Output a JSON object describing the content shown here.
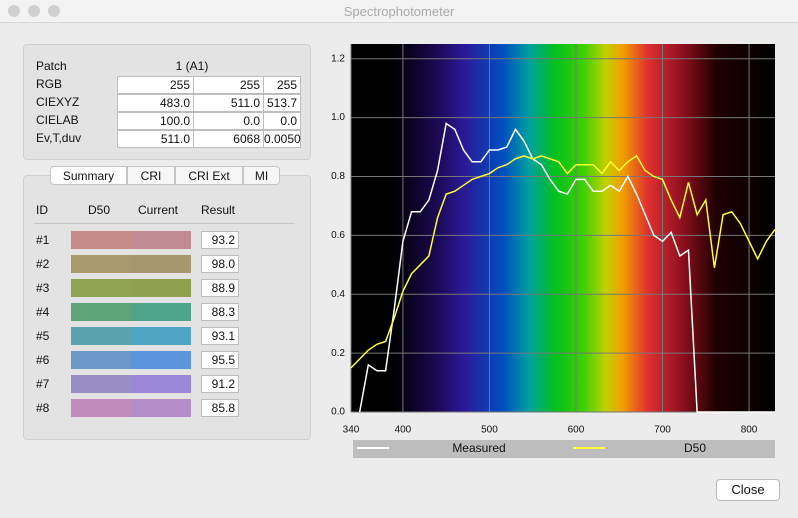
{
  "window": {
    "title": "Spectrophotometer"
  },
  "patch": {
    "label": "Patch",
    "value": "1  (A1)",
    "rows": [
      {
        "label": "RGB",
        "values": [
          "255",
          "255",
          "255"
        ]
      },
      {
        "label": "CIEXYZ",
        "values": [
          "483.0",
          "511.0",
          "513.7"
        ]
      },
      {
        "label": "CIELAB",
        "values": [
          "100.0",
          "0.0",
          "0.0"
        ]
      },
      {
        "label": "Ev,T,duv",
        "values": [
          "511.0",
          "6068",
          "0.0050"
        ]
      }
    ]
  },
  "tabs": [
    "Summary",
    "CRI",
    "CRI Ext",
    "MI"
  ],
  "cri": {
    "headers": [
      "ID",
      "D50",
      "Current",
      "Result"
    ],
    "rows": [
      {
        "id": "#1",
        "d50": "#c68a86",
        "current": "#c08a92",
        "result": "93.2"
      },
      {
        "id": "#2",
        "d50": "#a89a6c",
        "current": "#a8976e",
        "result": "98.0"
      },
      {
        "id": "#3",
        "d50": "#8fa352",
        "current": "#90a04e",
        "result": "88.9"
      },
      {
        "id": "#4",
        "d50": "#5ea478",
        "current": "#4ea58a",
        "result": "88.3"
      },
      {
        "id": "#5",
        "d50": "#5aa3ae",
        "current": "#4ea6c4",
        "result": "93.1"
      },
      {
        "id": "#6",
        "d50": "#6c98c8",
        "current": "#5b95de",
        "result": "95.5"
      },
      {
        "id": "#7",
        "d50": "#9a8ec6",
        "current": "#9c86d8",
        "result": "91.2"
      },
      {
        "id": "#8",
        "d50": "#c28cba",
        "current": "#b48cc8",
        "result": "85.8"
      }
    ]
  },
  "chart_data": {
    "type": "line",
    "x": [
      340,
      350,
      360,
      370,
      380,
      390,
      400,
      410,
      420,
      430,
      440,
      450,
      460,
      470,
      480,
      490,
      500,
      510,
      520,
      530,
      540,
      550,
      560,
      570,
      580,
      590,
      600,
      610,
      620,
      630,
      640,
      650,
      660,
      670,
      680,
      690,
      700,
      710,
      720,
      730,
      740,
      750,
      760,
      770,
      780,
      790,
      800,
      810,
      820,
      830
    ],
    "series": [
      {
        "name": "Measured",
        "color": "#ffffff",
        "values": [
          null,
          0,
          0.16,
          0.14,
          0.14,
          0.35,
          0.58,
          0.68,
          0.68,
          0.72,
          0.82,
          0.98,
          0.96,
          0.89,
          0.85,
          0.85,
          0.89,
          0.89,
          0.9,
          0.96,
          0.92,
          0.86,
          0.84,
          0.79,
          0.75,
          0.74,
          0.79,
          0.79,
          0.75,
          0.75,
          0.77,
          0.75,
          0.8,
          0.74,
          0.67,
          0.6,
          0.58,
          0.61,
          0.53,
          0.55,
          0,
          0,
          0,
          0,
          0,
          0,
          0,
          0,
          0,
          0
        ]
      },
      {
        "name": "D50",
        "color": "#ffff33",
        "values": [
          0.15,
          0.18,
          0.21,
          0.23,
          0.24,
          0.32,
          0.41,
          0.47,
          0.5,
          0.53,
          0.66,
          0.74,
          0.75,
          0.77,
          0.79,
          0.8,
          0.81,
          0.83,
          0.84,
          0.86,
          0.87,
          0.86,
          0.87,
          0.86,
          0.85,
          0.81,
          0.84,
          0.84,
          0.84,
          0.81,
          0.85,
          0.82,
          0.85,
          0.87,
          0.82,
          0.8,
          0.79,
          0.72,
          0.66,
          0.78,
          0.67,
          0.72,
          0.49,
          0.67,
          0.68,
          0.64,
          0.58,
          0.52,
          0.58,
          0.62
        ]
      }
    ],
    "xlim": [
      340,
      830
    ],
    "ylim": [
      0,
      1.25
    ],
    "xticks": [
      340,
      400,
      500,
      600,
      700,
      800
    ],
    "yticks": [
      {
        "value": 0,
        "label": "0.0"
      },
      0.2,
      0.4,
      0.6,
      0.8,
      {
        "value": 1,
        "label": "1.0"
      },
      1.2
    ],
    "grid": true
  },
  "buttons": {
    "close": "Close"
  }
}
